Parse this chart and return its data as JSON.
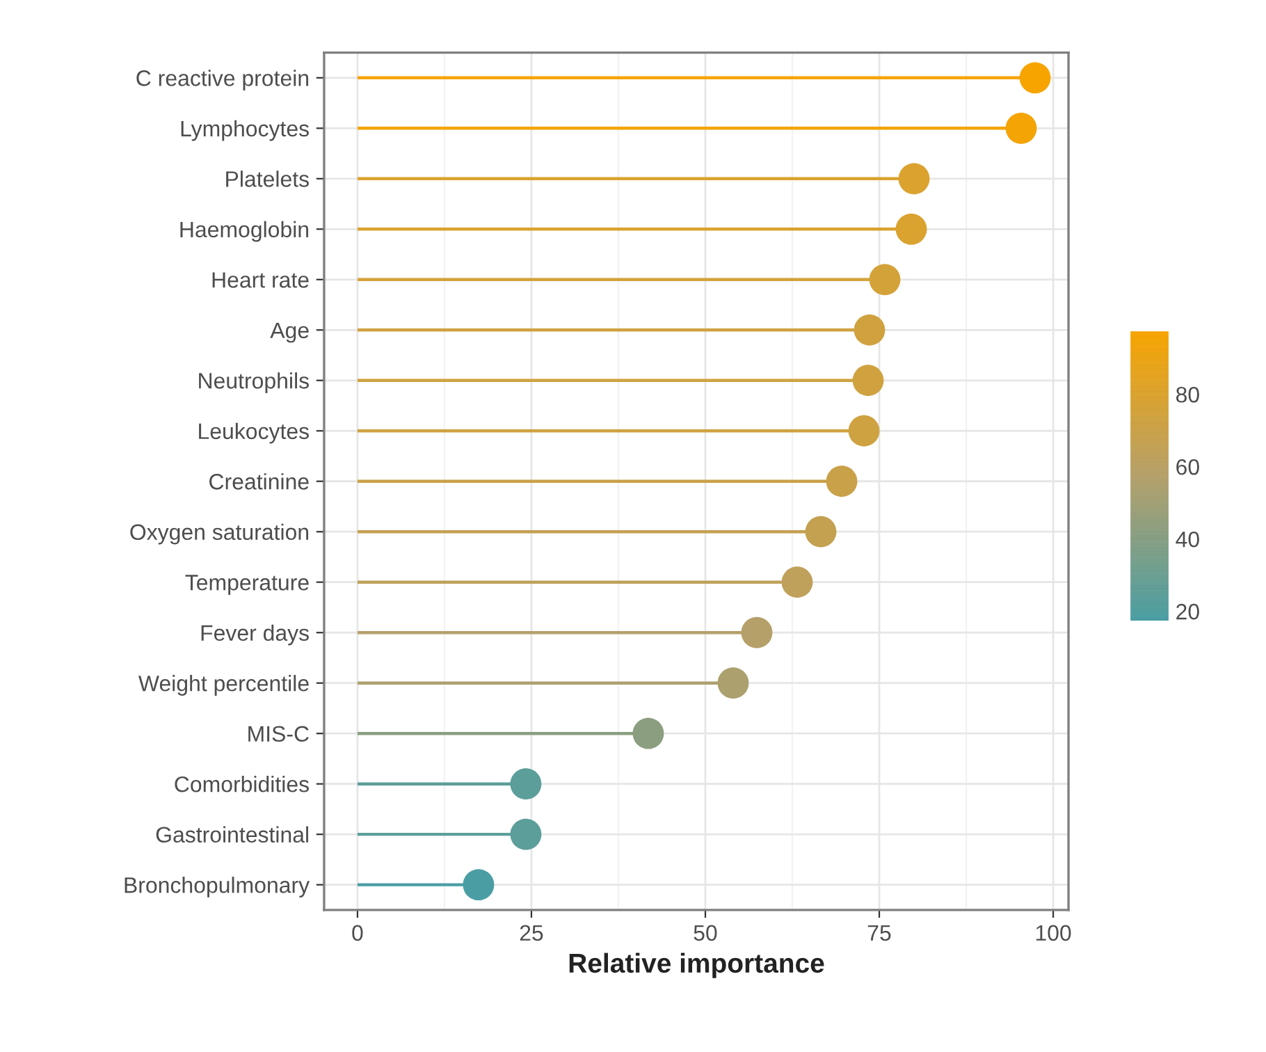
{
  "chart_data": {
    "type": "lollipop",
    "orientation": "horizontal",
    "xlabel": "Relative importance",
    "categories": [
      "C reactive protein",
      "Lymphocytes",
      "Platelets",
      "Haemoglobin",
      "Heart rate",
      "Age",
      "Neutrophils",
      "Leukocytes",
      "Creatinine",
      "Oxygen saturation",
      "Temperature",
      "Fever days",
      "Weight percentile",
      "MIS-C",
      "Comorbidities",
      "Gastrointestinal",
      "Bronchopulmonary"
    ],
    "values": [
      97.4,
      95.4,
      80,
      79.6,
      75.8,
      73.6,
      73.4,
      72.8,
      69.6,
      66.6,
      63.2,
      57.4,
      54,
      41.8,
      24.2,
      24.2,
      17.4
    ],
    "cvalues": [
      97.4,
      95.4,
      80,
      79.6,
      75.8,
      73.6,
      73.4,
      72.8,
      69.6,
      66.6,
      63.2,
      57.4,
      54,
      41.8,
      24.2,
      24.2,
      17.4
    ],
    "clim": [
      17.4,
      97.4
    ],
    "cticks": [
      20,
      40,
      60,
      80
    ],
    "xlim": [
      -4.8,
      102.2
    ],
    "xticks": [
      0,
      25,
      50,
      75,
      100
    ],
    "grid": true,
    "marker": "circle"
  }
}
